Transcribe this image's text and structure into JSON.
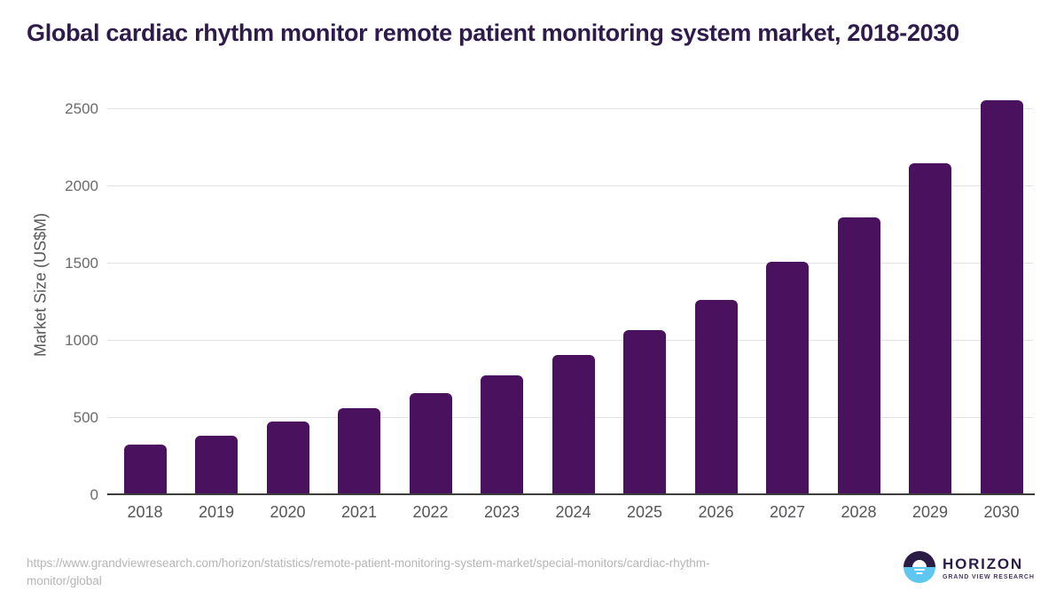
{
  "title": "Global cardiac rhythm monitor remote patient monitoring system market, 2018-2030",
  "source": {
    "url": "https://www.grandviewresearch.com/horizon/statistics/remote-patient-monitoring-system-market/special-monitors/cardiac-rhythm-monitor/global"
  },
  "logo": {
    "name": "HORIZON",
    "subtitle": "GRAND VIEW RESEARCH",
    "icon": "horizon-sun-circle-icon"
  },
  "colors": {
    "bar": "#4a115e",
    "title_text": "#2e1a4b",
    "y_axis_title_text": "#58585b",
    "y_tick_text": "#6b6b6e",
    "x_tick_text": "#555558",
    "gridline": "#e2e2e2",
    "axis_line": "#3d3d3d",
    "url_text": "#b5b5b5",
    "logo_dark": "#2b1b47",
    "logo_blue": "#5ec7ef"
  },
  "chart_data": {
    "type": "bar",
    "title": "Global cardiac rhythm monitor remote patient monitoring system market, 2018-2030",
    "categories": [
      "2018",
      "2019",
      "2020",
      "2021",
      "2022",
      "2023",
      "2024",
      "2025",
      "2026",
      "2027",
      "2028",
      "2029",
      "2030"
    ],
    "values": [
      330,
      385,
      475,
      560,
      660,
      775,
      910,
      1070,
      1265,
      1510,
      1800,
      2145,
      2555
    ],
    "xlabel": "",
    "ylabel": "Market Size (US$M)",
    "yticks": [
      0,
      500,
      1000,
      1500,
      2000,
      2500
    ],
    "ylim": [
      0,
      2630
    ],
    "grid": true,
    "legend_position": "none",
    "bar_color": "#4a115e"
  }
}
